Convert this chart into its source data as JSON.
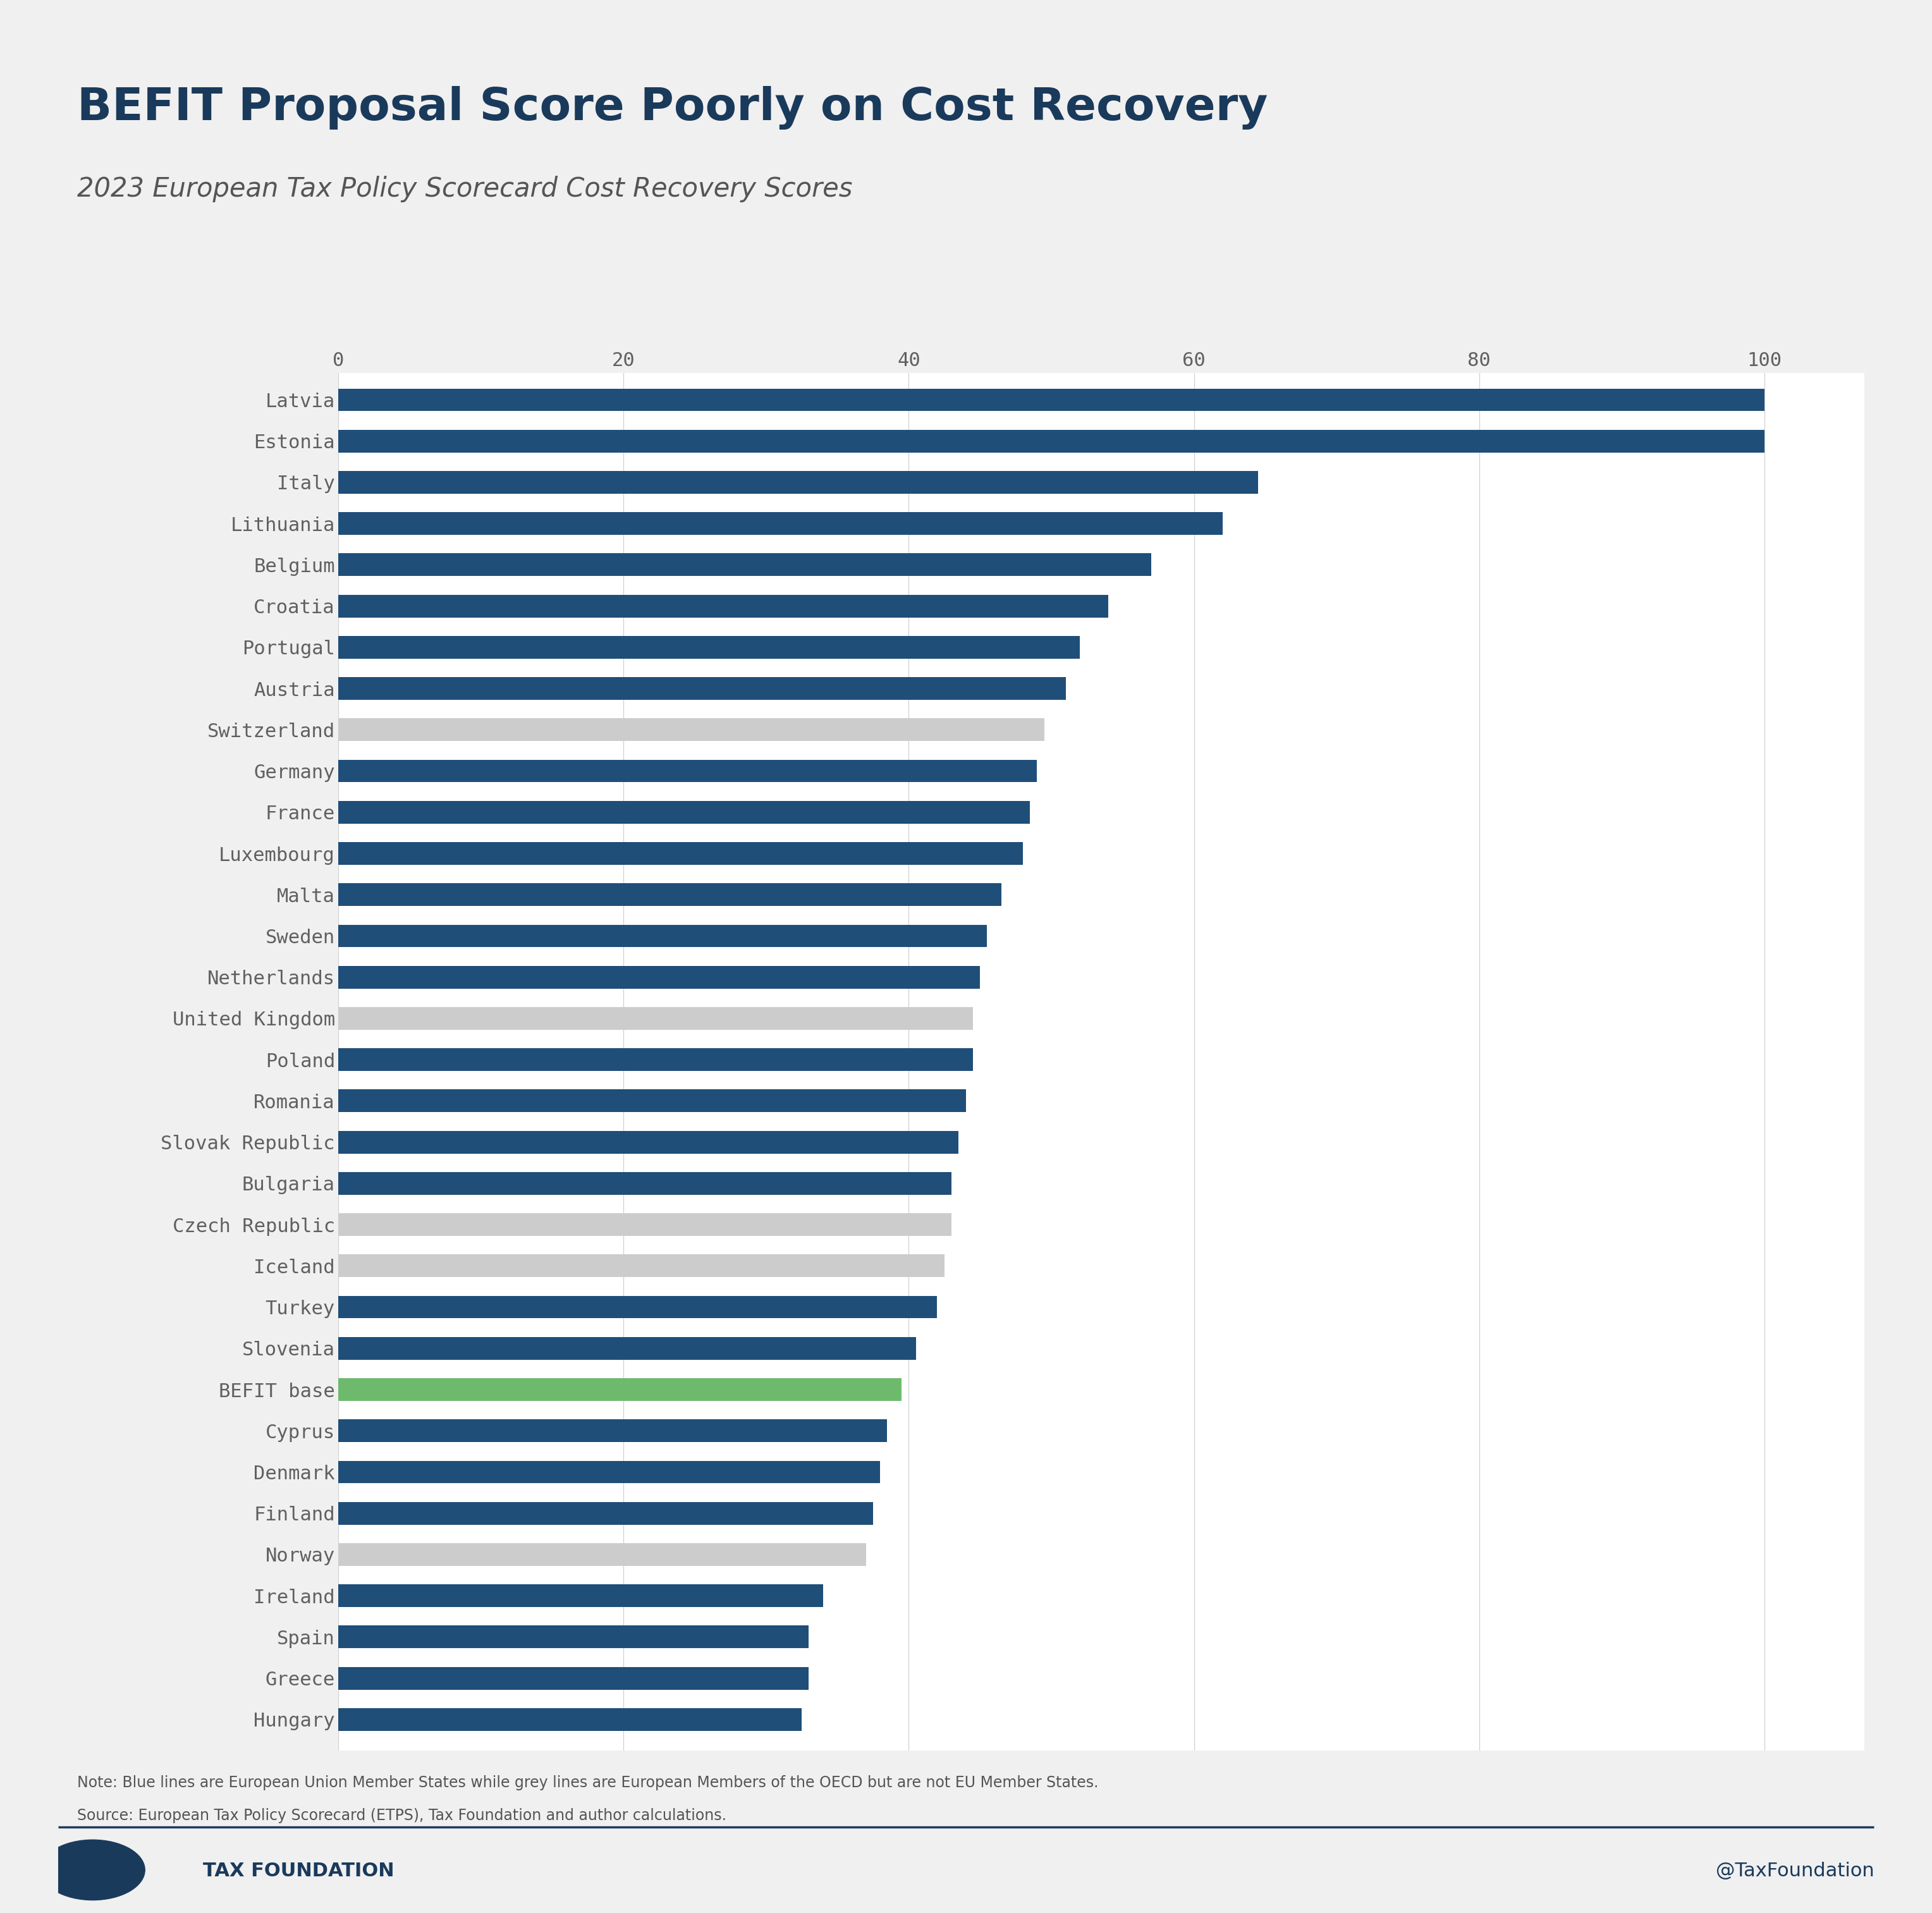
{
  "title": "BEFIT Proposal Score Poorly on Cost Recovery",
  "subtitle": "2023 European Tax Policy Scorecard Cost Recovery Scores",
  "note_line1": "Note: Blue lines are European Union Member States while grey lines are European Members of the OECD but are not EU Member States.",
  "note_line2": "Source: European Tax Policy Scorecard (ETPS), Tax Foundation and author calculations.",
  "footer_left": "TAX FOUNDATION",
  "footer_right": "@TaxFoundation",
  "background_color": "#f0f0f0",
  "bar_area_color": "#ffffff",
  "title_color": "#1a3a5c",
  "subtitle_color": "#555555",
  "axis_color": "#606060",
  "note_color": "#555555",
  "footer_color": "#1a3a5c",
  "countries": [
    "Latvia",
    "Estonia",
    "Italy",
    "Lithuania",
    "Belgium",
    "Croatia",
    "Portugal",
    "Austria",
    "Switzerland",
    "Germany",
    "France",
    "Luxembourg",
    "Malta",
    "Sweden",
    "Netherlands",
    "United Kingdom",
    "Poland",
    "Romania",
    "Slovak Republic",
    "Bulgaria",
    "Czech Republic",
    "Iceland",
    "Turkey",
    "Slovenia",
    "BEFIT base",
    "Cyprus",
    "Denmark",
    "Finland",
    "Norway",
    "Ireland",
    "Spain",
    "Greece",
    "Hungary"
  ],
  "values": [
    100.0,
    100.0,
    64.5,
    62.0,
    57.0,
    54.0,
    52.0,
    51.0,
    49.5,
    49.0,
    48.5,
    48.0,
    46.5,
    45.5,
    45.0,
    44.5,
    44.5,
    44.0,
    43.5,
    43.0,
    43.0,
    42.5,
    42.0,
    40.5,
    39.5,
    38.5,
    38.0,
    37.5,
    37.0,
    34.0,
    33.0,
    33.0,
    32.5
  ],
  "colors": [
    "#1f4e79",
    "#1f4e79",
    "#1f4e79",
    "#1f4e79",
    "#1f4e79",
    "#1f4e79",
    "#1f4e79",
    "#1f4e79",
    "#cccccc",
    "#1f4e79",
    "#1f4e79",
    "#1f4e79",
    "#1f4e79",
    "#1f4e79",
    "#1f4e79",
    "#cccccc",
    "#1f4e79",
    "#1f4e79",
    "#1f4e79",
    "#1f4e79",
    "#cccccc",
    "#cccccc",
    "#1f4e79",
    "#1f4e79",
    "#6dba6d",
    "#1f4e79",
    "#1f4e79",
    "#1f4e79",
    "#cccccc",
    "#1f4e79",
    "#1f4e79",
    "#1f4e79",
    "#1f4e79"
  ],
  "xlim": [
    0,
    107
  ],
  "xticks": [
    0,
    20,
    40,
    60,
    80,
    100
  ],
  "bar_height": 0.55
}
